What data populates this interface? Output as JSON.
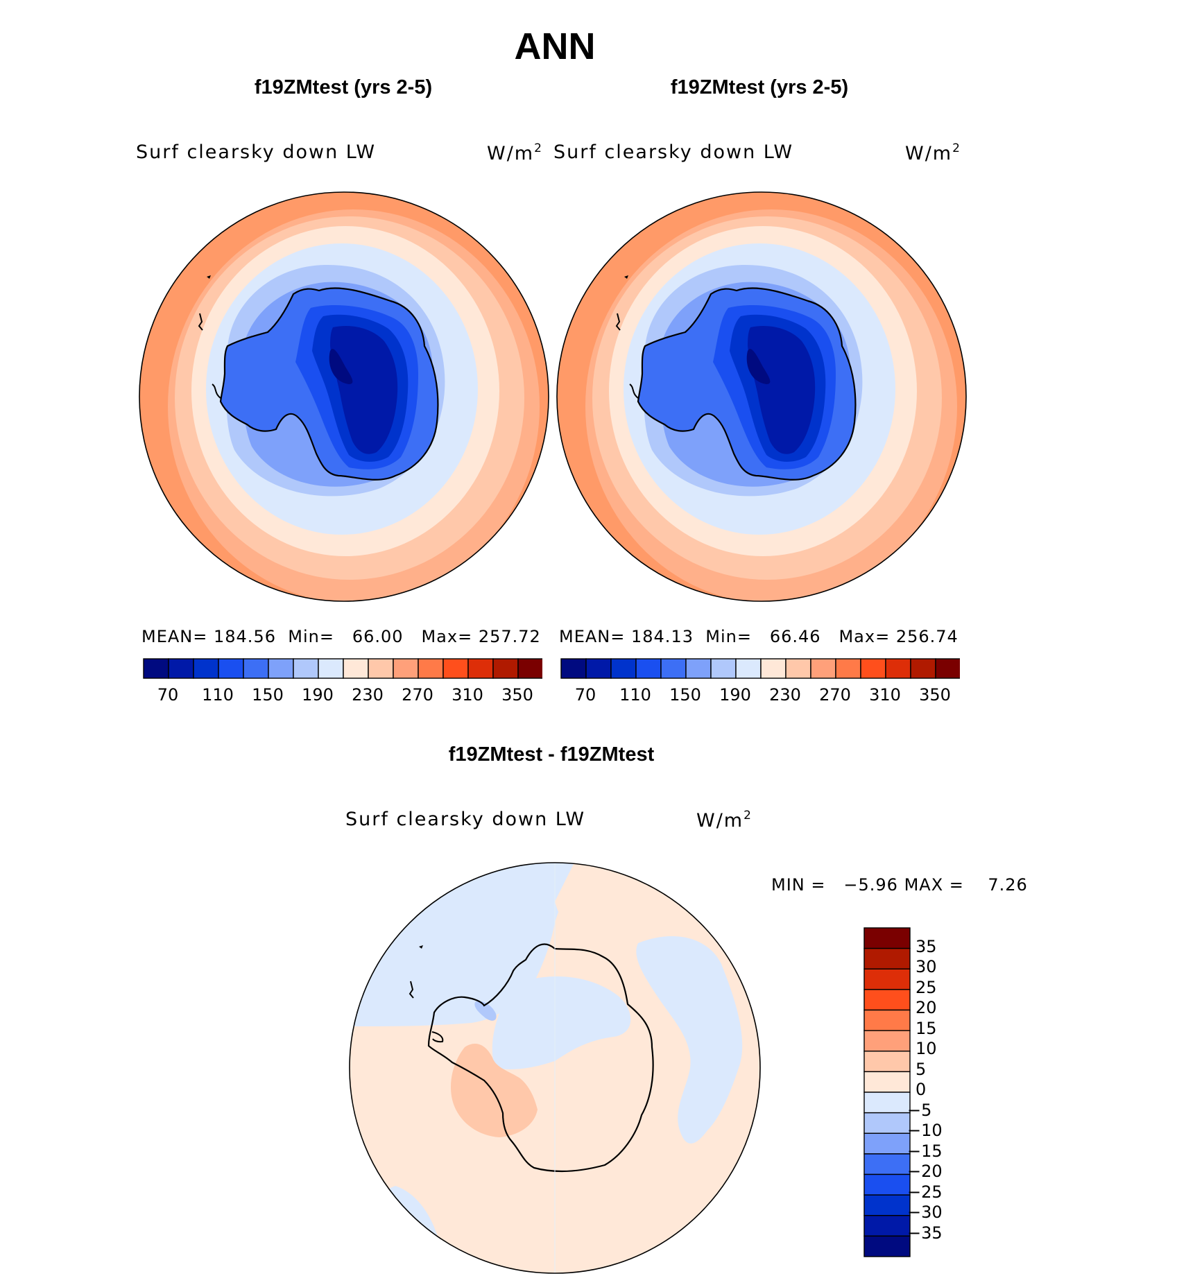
{
  "title": "ANN",
  "panels": [
    {
      "case_title": "f19ZMtest (yrs 2-5)",
      "variable": "Surf clearsky down LW",
      "units_base": "W/m",
      "units_exp": "2",
      "stats": {
        "mean_label": "MEAN=",
        "mean": "184.56",
        "min_label": "Min=",
        "min": "66.00",
        "max_label": "Max=",
        "max": "257.72"
      }
    },
    {
      "case_title": "f19ZMtest (yrs 2-5)",
      "variable": "Surf clearsky down LW",
      "units_base": "W/m",
      "units_exp": "2",
      "stats": {
        "mean_label": "MEAN=",
        "mean": "184.13",
        "min_label": "Min=",
        "min": "66.46",
        "max_label": "Max=",
        "max": "256.74"
      }
    }
  ],
  "diff_panel": {
    "case_title": "f19ZMtest - f19ZMtest",
    "variable": "Surf clearsky down LW",
    "units_base": "W/m",
    "units_exp": "2",
    "stats": {
      "min_label": "MIN =",
      "min": "−5.96",
      "max_label": "MAX =",
      "max": "7.26"
    }
  },
  "colorbar": {
    "colors": [
      "#000a80",
      "#0019a8",
      "#0033cc",
      "#1a4ff0",
      "#3d6ff5",
      "#7ea1fa",
      "#b0c8fb",
      "#dbe9fd",
      "#ffe8d8",
      "#ffc8aa",
      "#ffa07a",
      "#ff7a48",
      "#ff4f1c",
      "#dd2e08",
      "#b01a00",
      "#7a0000"
    ],
    "tick_labels": [
      "70",
      "110",
      "150",
      "190",
      "230",
      "270",
      "310",
      "350"
    ]
  },
  "diff_colorbar": {
    "colors_top_down": [
      "#7a0000",
      "#b01a00",
      "#dd2e08",
      "#ff4f1c",
      "#ff7a48",
      "#ffa07a",
      "#ffc8aa",
      "#ffe8d8",
      "#dbe9fd",
      "#b0c8fb",
      "#7ea1fa",
      "#3d6ff5",
      "#1a4ff0",
      "#0033cc",
      "#0019a8",
      "#000a80"
    ],
    "tick_labels": [
      "35",
      "30",
      "25",
      "20",
      "15",
      "10",
      "5",
      "0",
      "−5",
      "−10",
      "−15",
      "−20",
      "−25",
      "−30",
      "−35"
    ]
  },
  "colors": {
    "coastline": "#000000",
    "outline": "#000000",
    "background": "#ffffff"
  }
}
